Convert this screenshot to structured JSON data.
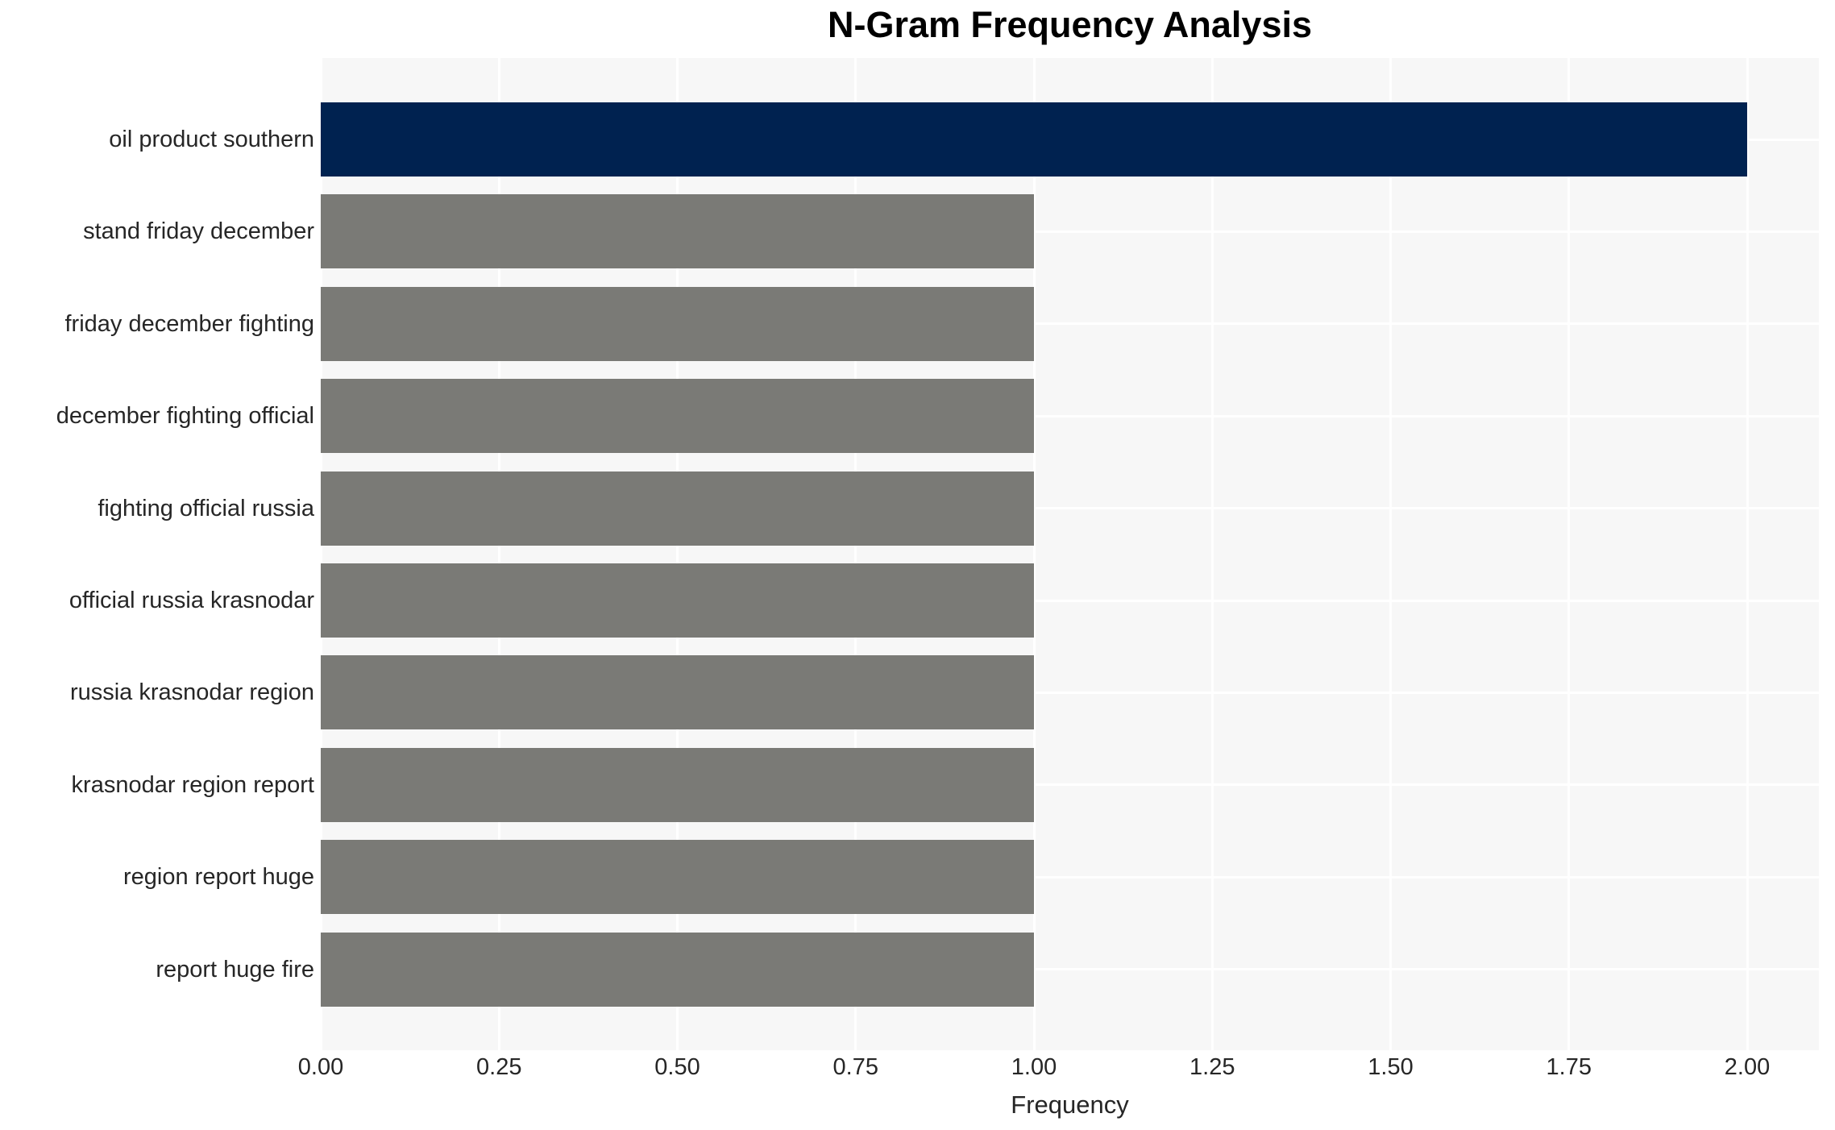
{
  "chart_data": {
    "type": "bar",
    "orientation": "horizontal",
    "title": "N-Gram Frequency Analysis",
    "xlabel": "Frequency",
    "ylabel": "",
    "categories": [
      "oil product southern",
      "stand friday december",
      "friday december fighting",
      "december fighting official",
      "fighting official russia",
      "official russia krasnodar",
      "russia krasnodar region",
      "krasnodar region report",
      "region report huge",
      "report huge fire"
    ],
    "values": [
      2,
      1,
      1,
      1,
      1,
      1,
      1,
      1,
      1,
      1
    ],
    "xlim": [
      0,
      2.1
    ],
    "xticks": [
      0,
      0.25,
      0.5,
      0.75,
      1.0,
      1.25,
      1.5,
      1.75,
      2.0
    ],
    "xtick_labels": [
      "0.00",
      "0.25",
      "0.50",
      "0.75",
      "1.00",
      "1.25",
      "1.50",
      "1.75",
      "2.00"
    ],
    "grid": true,
    "legend_position": "none",
    "bar_colors": [
      "#002250",
      "#7a7a76",
      "#7a7a76",
      "#7a7a76",
      "#7a7a76",
      "#7a7a76",
      "#7a7a76",
      "#7a7a76",
      "#7a7a76",
      "#7a7a76"
    ],
    "colors": {
      "highlight_bar": "#002250",
      "default_bar": "#7a7a76",
      "plot_background": "#f7f7f7",
      "gridline": "#ffffff",
      "tick_text": "#262626",
      "title_text": "#000000"
    }
  }
}
